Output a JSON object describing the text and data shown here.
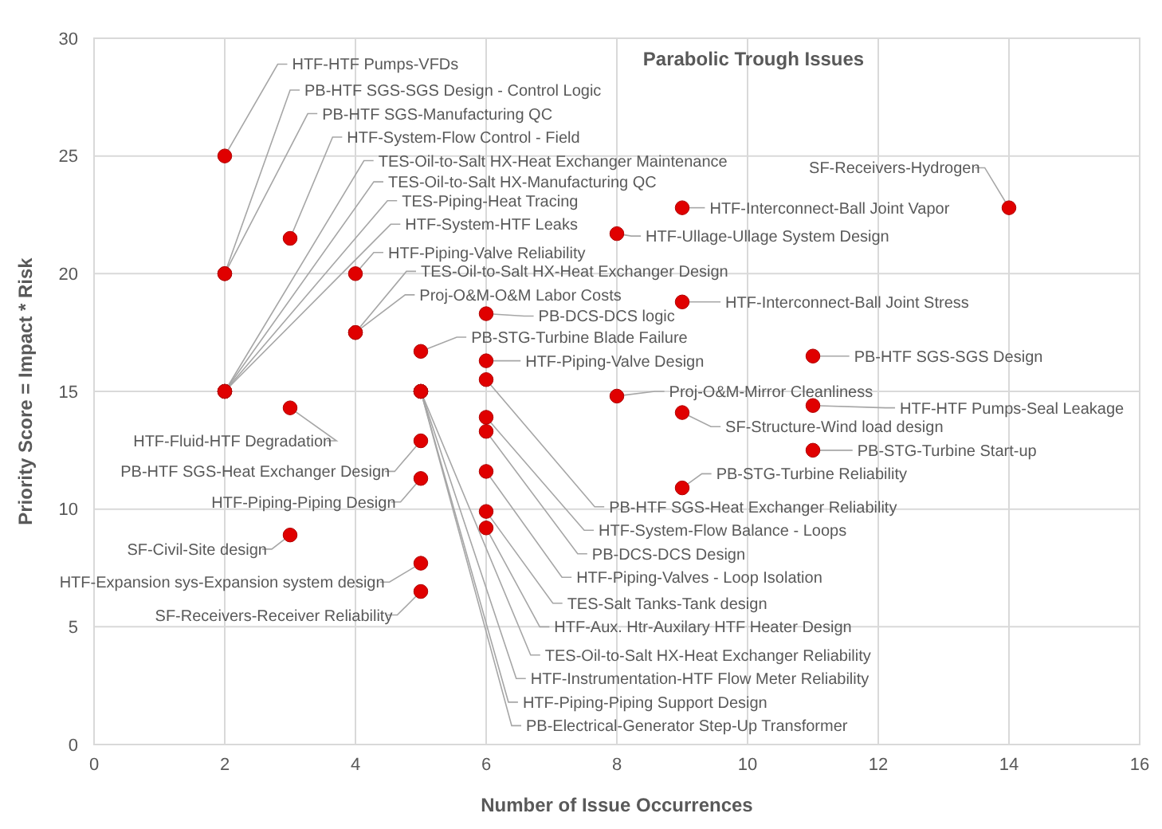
{
  "chart_data": {
    "type": "scatter",
    "title": "Parabolic Trough Issues",
    "xlabel": "Number of Issue Occurrences",
    "ylabel": "Priority Score = Impact * Risk",
    "xlim": [
      0,
      16
    ],
    "xticks": [
      0,
      2,
      4,
      6,
      8,
      10,
      12,
      14,
      16
    ],
    "ylim": [
      0,
      30
    ],
    "yticks": [
      0,
      5,
      10,
      15,
      20,
      25,
      30
    ],
    "grid": true,
    "marker": "circle",
    "series": [
      {
        "color": "#e00000",
        "x": [
          2,
          2,
          2,
          3,
          2,
          2,
          2,
          2,
          4,
          4,
          4,
          6,
          5,
          6,
          9,
          8,
          14,
          9,
          11,
          8,
          11,
          9,
          11,
          9,
          6,
          6,
          6,
          6,
          6,
          6,
          5,
          5,
          5,
          5,
          3,
          5,
          5,
          3,
          5,
          5
        ],
        "values": [
          25,
          20,
          20,
          21.5,
          15,
          15,
          15,
          15,
          20,
          17.5,
          17.5,
          18.3,
          16.7,
          16.3,
          22.8,
          21.7,
          22.8,
          18.8,
          16.5,
          14.8,
          14.4,
          14.1,
          12.5,
          10.9,
          15.5,
          13.9,
          13.3,
          11.6,
          9.9,
          9.2,
          15,
          15,
          15,
          15,
          14.3,
          12.9,
          11.3,
          8.9,
          7.7,
          6.5
        ],
        "value_labels": [
          "HTF-HTF Pumps-VFDs",
          "PB-HTF SGS-SGS Design - Control Logic",
          "PB-HTF SGS-Manufacturing QC",
          "HTF-System-Flow Control - Field",
          "TES-Oil-to-Salt HX-Heat Exchanger Maintenance",
          "TES-Oil-to-Salt HX-Manufacturing QC",
          "TES-Piping-Heat Tracing",
          "HTF-System-HTF Leaks",
          "HTF-Piping-Valve Reliability",
          "TES-Oil-to-Salt HX-Heat Exchanger Design",
          "Proj-O&M-O&M Labor Costs",
          "PB-DCS-DCS logic",
          "PB-STG-Turbine Blade Failure",
          "HTF-Piping-Valve Design",
          "HTF-Interconnect-Ball Joint Vapor",
          "HTF-Ullage-Ullage System Design",
          "SF-Receivers-Hydrogen",
          "HTF-Interconnect-Ball Joint Stress",
          "PB-HTF SGS-SGS Design",
          "Proj-O&M-Mirror Cleanliness",
          "HTF-HTF Pumps-Seal Leakage",
          "SF-Structure-Wind load design",
          "PB-STG-Turbine Start-up",
          "PB-STG-Turbine Reliability",
          "PB-HTF SGS-Heat Exchanger Reliability",
          "HTF-System-Flow Balance - Loops",
          "PB-DCS-DCS Design",
          "HTF-Piping-Valves - Loop Isolation",
          "TES-Salt Tanks-Tank design",
          "HTF-Aux. Htr-Auxilary HTF Heater Design",
          "TES-Oil-to-Salt HX-Heat Exchanger Reliability",
          "HTF-Instrumentation-HTF Flow Meter Reliability",
          "HTF-Piping-Piping Support Design",
          "PB-Electrical-Generator Step-Up Transformer",
          "HTF-Fluid-HTF Degradation",
          "PB-HTF SGS-Heat Exchanger Design",
          "HTF-Piping-Piping Design",
          "SF-Civil-Site design",
          "HTF-Expansion sys-Expansion system design",
          "SF-Receivers-Receiver Reliability"
        ]
      }
    ]
  }
}
